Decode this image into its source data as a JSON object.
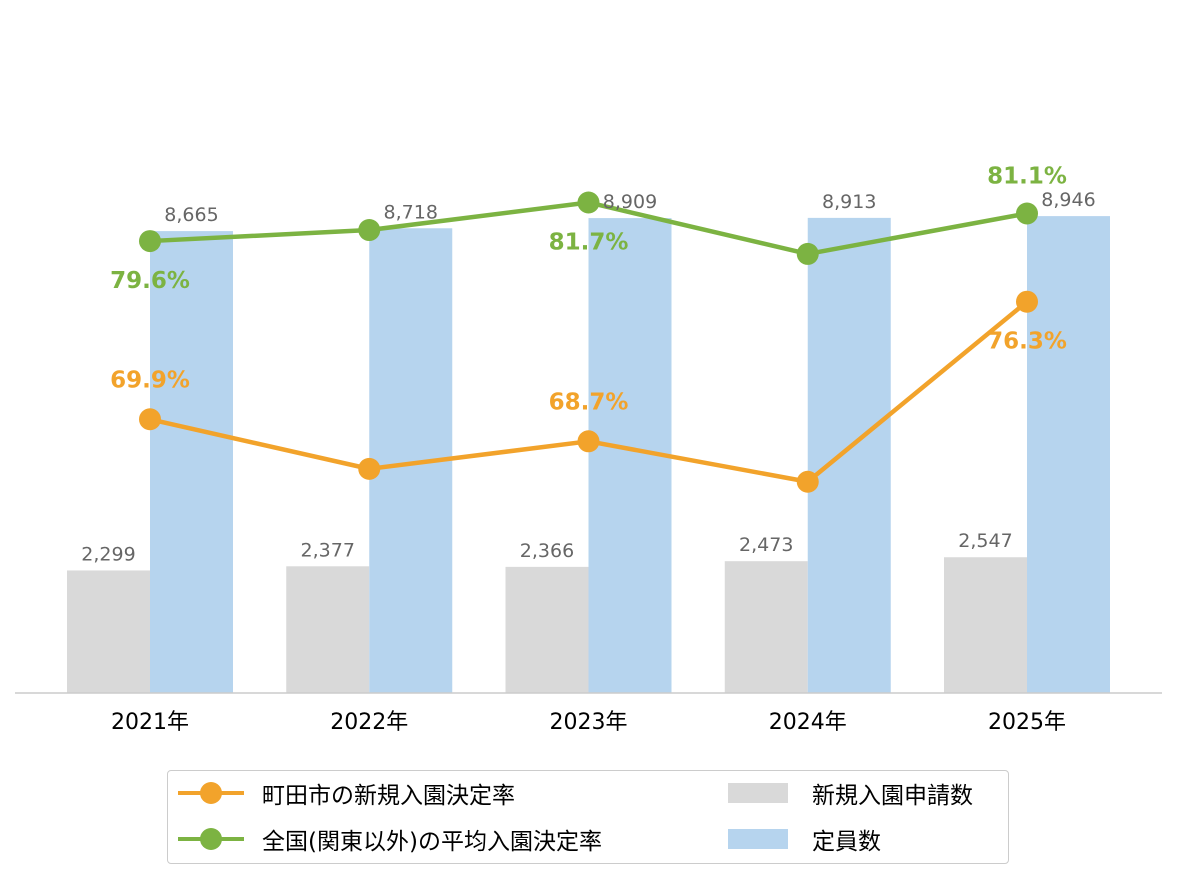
{
  "chart_data": {
    "type": "bar",
    "categories": [
      "2021年",
      "2022年",
      "2023年",
      "2024年",
      "2025年"
    ],
    "bar_series": [
      {
        "name": "新規入園申請数",
        "color": "#d9d9d9",
        "values": [
          2299,
          2377,
          2366,
          2473,
          2547
        ],
        "labels": [
          "2,299",
          "2,377",
          "2,366",
          "2,473",
          "2,547"
        ]
      },
      {
        "name": "定員数",
        "color": "#b6d4ee",
        "values": [
          8665,
          8718,
          8909,
          8913,
          8946
        ],
        "labels": [
          "8,665",
          "8,718",
          "8,909",
          "8,913",
          "8,946"
        ]
      }
    ],
    "line_series": [
      {
        "name": "町田市の新規入園決定率",
        "color": "#f2a32b",
        "values": [
          69.9,
          67.2,
          68.7,
          66.5,
          76.3
        ],
        "labels": [
          "69.9%",
          "",
          "68.7%",
          "",
          "76.3%"
        ]
      },
      {
        "name": "全国(関東以外)の平均入園決定率",
        "color": "#7cb342",
        "values": [
          79.6,
          80.2,
          81.7,
          78.9,
          81.1
        ],
        "labels": [
          "79.6%",
          "",
          "81.7%",
          "",
          "81.1%"
        ]
      }
    ],
    "bar_ylim": [
      0,
      13000
    ],
    "line_ylim": [
      55,
      90
    ],
    "grid": false,
    "legend_position": "bottom"
  }
}
